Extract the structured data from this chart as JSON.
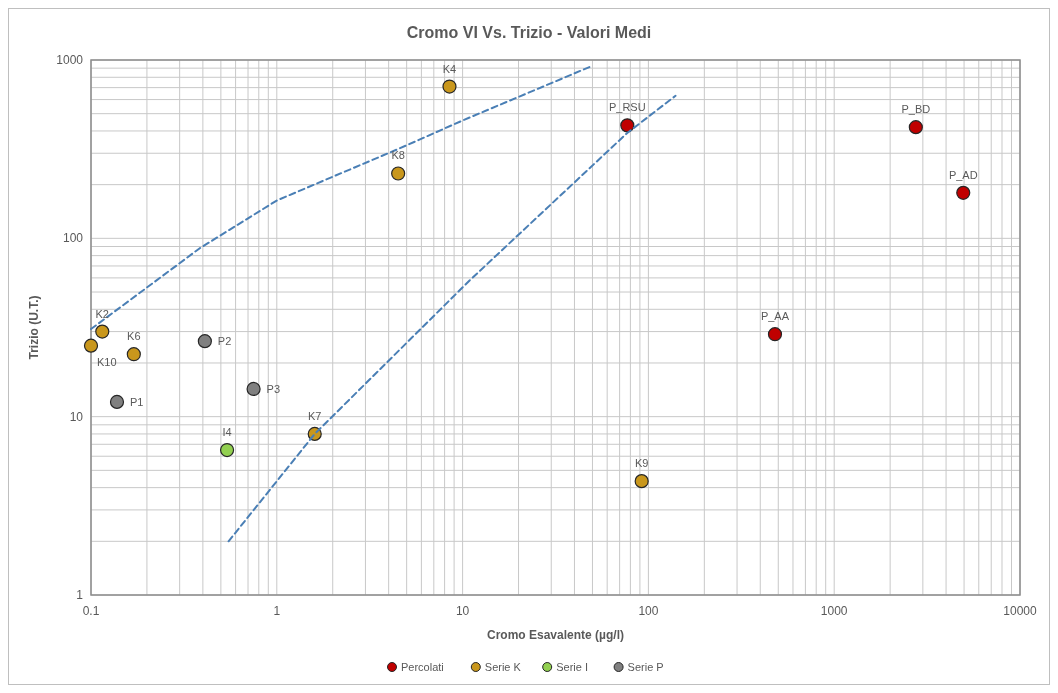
{
  "chart_data": {
    "type": "scatter",
    "title": "Cromo VI Vs. Trizio - Valori Medi",
    "xlabel": "Cromo Esavalente (µg/l)",
    "ylabel": "Trizio (U.T.)",
    "log": "xy",
    "grid": true,
    "legend": "bottom",
    "marker": "circle",
    "xlim": [
      0.1,
      10000
    ],
    "ylim": [
      1,
      1000
    ],
    "xticks": [
      0.1,
      1,
      10,
      100,
      1000,
      10000
    ],
    "yticks": [
      1,
      10,
      100,
      1000
    ],
    "series": [
      {
        "name": "Percolati",
        "color": "#c00000",
        "x": [
          77,
          480,
          2750,
          4950
        ],
        "values": [
          430,
          29,
          420,
          180
        ]
      },
      {
        "name": "Serie K",
        "color": "#c9971c",
        "x": [
          0.115,
          0.1,
          0.17,
          1.6,
          4.5,
          8.5,
          92
        ],
        "values": [
          30,
          25,
          22.4,
          8,
          231,
          710,
          4.35
        ]
      },
      {
        "name": "Serie I",
        "color": "#92d050",
        "x": [
          0.54
        ],
        "values": [
          6.5
        ]
      },
      {
        "name": "Serie P",
        "color": "#808080",
        "x": [
          0.138,
          0.41,
          0.75
        ],
        "values": [
          12.1,
          26.5,
          14.3
        ]
      },
      {
        "type": "line",
        "color": "#4a7fb5",
        "line_style": "dashed",
        "marker": "none",
        "x": [
          0.1,
          0.385,
          1,
          4.6,
          10,
          49
        ],
        "values": [
          31,
          88,
          163,
          320,
          458,
          920
        ]
      },
      {
        "type": "line",
        "color": "#4a7fb5",
        "line_style": "dashed",
        "marker": "none",
        "x": [
          0.55,
          1.6,
          10.9,
          77,
          140
        ],
        "values": [
          2,
          8,
          58,
          390,
          630
        ]
      }
    ],
    "annotations": [
      {
        "text": "P_RSU",
        "x": 77,
        "y": 430
      },
      {
        "text": "P_AA",
        "x": 480,
        "y": 29
      },
      {
        "text": "P_BD",
        "x": 2750,
        "y": 420
      },
      {
        "text": "P_AD",
        "x": 4950,
        "y": 180
      },
      {
        "text": "K2",
        "x": 0.115,
        "y": 30
      },
      {
        "text": "K10",
        "x": 0.1,
        "y": 25
      },
      {
        "text": "K6",
        "x": 0.17,
        "y": 22.4
      },
      {
        "text": "K7",
        "x": 1.6,
        "y": 8
      },
      {
        "text": "K8",
        "x": 4.5,
        "y": 231
      },
      {
        "text": "K4",
        "x": 8.5,
        "y": 710
      },
      {
        "text": "K9",
        "x": 92,
        "y": 4.35
      },
      {
        "text": "I4",
        "x": 0.54,
        "y": 6.5
      },
      {
        "text": "P1",
        "x": 0.138,
        "y": 12.1
      },
      {
        "text": "P2",
        "x": 0.41,
        "y": 26.5
      },
      {
        "text": "P3",
        "x": 0.75,
        "y": 14.3
      }
    ]
  }
}
